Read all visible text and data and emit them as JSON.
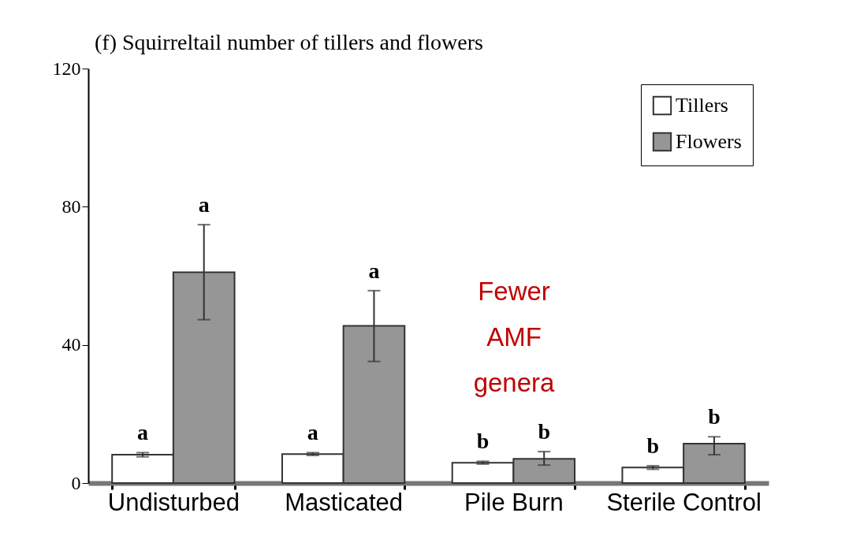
{
  "chart_data": {
    "type": "bar",
    "title": "(f) Squirreltail number of tillers and flowers",
    "categories": [
      "Undisturbed",
      "Masticated",
      "Pile Burn",
      "Sterile Control"
    ],
    "series": [
      {
        "name": "Tillers",
        "color": "#ffffff",
        "values": [
          8.2,
          8.4,
          5.9,
          4.5
        ],
        "errors": [
          0.6,
          0.4,
          0.4,
          0.5
        ]
      },
      {
        "name": "Flowers",
        "color": "#969696",
        "values": [
          61,
          45.5,
          7,
          11.4
        ],
        "errors": [
          [
            47.3,
            74.8
          ],
          [
            35.2,
            55.7
          ],
          [
            5.2,
            9.1
          ],
          [
            8.2,
            13.4
          ]
        ]
      }
    ],
    "ylim": [
      0,
      120
    ],
    "yticks": [
      0,
      40,
      80,
      120
    ],
    "grid": false,
    "legend": "top right",
    "annotations": [
      {
        "text": "a",
        "x": "Undisturbed",
        "y": 8.2
      },
      {
        "text": "a",
        "x": "Undisturbed",
        "y": 61
      },
      {
        "text": "a",
        "x": "Masticated",
        "y": 8.4
      },
      {
        "text": "a",
        "x": "Masticated",
        "y": 45.5
      },
      {
        "text": "b",
        "x": "Pile Burn",
        "y": 5.9
      },
      {
        "text": "b",
        "x": "Pile Burn",
        "y": 7
      },
      {
        "text": "b",
        "x": "Sterile Control",
        "y": 4.5
      },
      {
        "text": "b",
        "x": "Sterile Control",
        "y": 11.4
      },
      "Fewer AMF genera"
    ]
  }
}
